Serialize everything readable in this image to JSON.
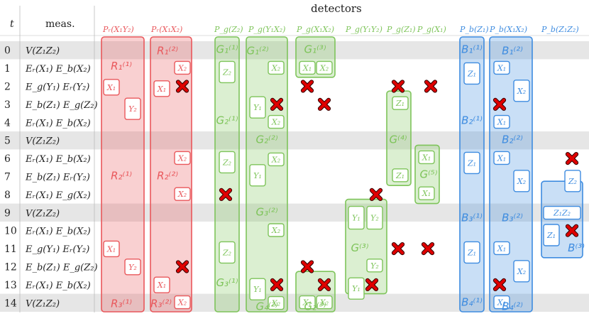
{
  "header": {
    "detectors": "detectors",
    "t": "t",
    "meas": "meas."
  },
  "colors": {
    "red": "#e9575b",
    "green": "#7ec45a",
    "blue": "#3e8ce0"
  },
  "rows": [
    {
      "t": "0",
      "meas": "V(Z₁Z₂)"
    },
    {
      "t": "1",
      "meas": "Eᵣ(X₁)  E_b(X₂)"
    },
    {
      "t": "2",
      "meas": "E_g(Y₁)  Eᵣ(Y₂)"
    },
    {
      "t": "3",
      "meas": "E_b(Z₁)  E_g(Z₂)"
    },
    {
      "t": "4",
      "meas": "Eᵣ(X₁)  E_b(X₂)"
    },
    {
      "t": "5",
      "meas": "V(Z₁Z₂)"
    },
    {
      "t": "6",
      "meas": "Eᵣ(X₁)  E_b(X₂)"
    },
    {
      "t": "7",
      "meas": "E_b(Z₁)  Eᵣ(Y₂)"
    },
    {
      "t": "8",
      "meas": "Eᵣ(X₁)  E_g(X₂)"
    },
    {
      "t": "9",
      "meas": "V(Z₁Z₂)"
    },
    {
      "t": "10",
      "meas": "Eᵣ(X₁)  E_b(X₂)"
    },
    {
      "t": "11",
      "meas": "E_g(Y₁)  Eᵣ(Y₂)"
    },
    {
      "t": "12",
      "meas": "E_b(Z₁)  E_g(Z₂)"
    },
    {
      "t": "13",
      "meas": "Eᵣ(X₁)  E_b(X₂)"
    },
    {
      "t": "14",
      "meas": "V(Z₁Z₂)"
    }
  ],
  "detector_labels": [
    "Pᵣ(X₁Y₂)",
    "Pᵣ(X₁X₂)",
    "P_g(Z₂)",
    "P_g(Y₁X₂)",
    "P_g(X₁X₂)",
    "P_g(Y₁Y₂)",
    "P_g(Z₁)",
    "P_g(X₁)",
    "P_b(Z₁)",
    "P_b(X₁X₂)",
    "P_b(Z₁Z₂)"
  ],
  "blocks": {
    "R1_1": "R₁⁽¹⁾",
    "R1_2": "R₁⁽²⁾",
    "R2_1": "R₂⁽¹⁾",
    "R2_2": "R₂⁽²⁾",
    "R3_1": "R₃⁽¹⁾",
    "R3_2": "R₃⁽²⁾",
    "G1_1": "G₁⁽¹⁾",
    "G1_2": "G₁⁽²⁾",
    "G1_3": "G₁⁽³⁾",
    "G2_1": "G₂⁽¹⁾",
    "G2_2": "G₂⁽²⁾",
    "G3_1": "G₃⁽¹⁾",
    "G3_2": "G₃⁽²⁾",
    "G4_2": "G₄⁽²⁾",
    "G2_3": "G₂⁽³⁾",
    "G3": "G⁽³⁾",
    "G4": "G⁽⁴⁾",
    "G5": "G⁽⁵⁾",
    "B1_1": "B₁⁽¹⁾",
    "B1_2": "B₁⁽²⁾",
    "B2_1": "B₂⁽¹⁾",
    "B2_2": "B₂⁽²⁾",
    "B3_1": "B₃⁽¹⁾",
    "B3_2": "B₃⁽²⁾",
    "B4_1": "B₄⁽¹⁾",
    "B4_2": "B₄⁽²⁾",
    "B3": "B⁽³⁾"
  },
  "boxes": {
    "X1": "X₁",
    "X2": "X₂",
    "Y1": "Y₁",
    "Y2": "Y₂",
    "Z1": "Z₁",
    "Z2": "Z₂",
    "Z1Z2": "Z₁Z₂"
  }
}
